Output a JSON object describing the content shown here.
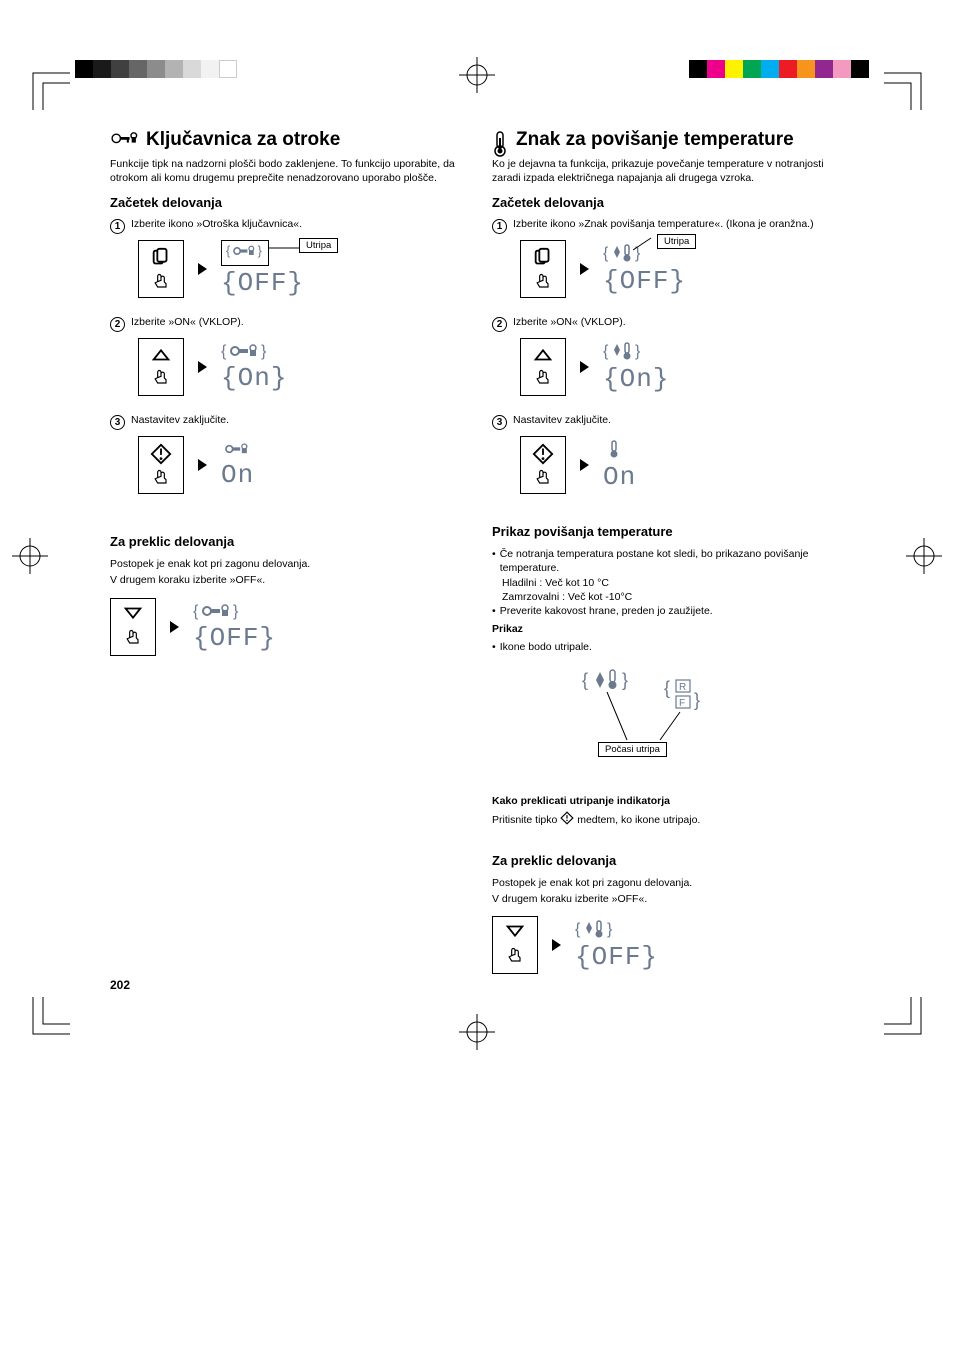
{
  "page_number": "202",
  "registration_colors_left": [
    "#000000",
    "#1a1a1a",
    "#404040",
    "#666666",
    "#8c8c8c",
    "#b3b3b3",
    "#d9d9d9",
    "#f2f2f2",
    "#ffffff"
  ],
  "registration_colors_right": [
    "#000000",
    "#ec008c",
    "#fff200",
    "#00a651",
    "#00aeef",
    "#ed1c24",
    "#f7941d",
    "#92278f",
    "#f49ac1",
    "#000000"
  ],
  "left": {
    "title": "Ključavnica za otroke",
    "intro": "Funkcije tipk na nadzorni plošči bodo zaklenjene. To funkcijo uporabite, da otrokom ali komu drugemu preprečite nenadzorovano uporabo plošče.",
    "start_heading": "Začetek delovanja",
    "steps": [
      {
        "num": "1",
        "text": "Izberite ikono »Otroška ključavnica«."
      },
      {
        "num": "2",
        "text": "Izberite »ON« (VKLOP)."
      },
      {
        "num": "3",
        "text": "Nastavitev zaključite."
      }
    ],
    "utripa": "Utripa",
    "seg_off": "OFF",
    "seg_on_blink": "On",
    "seg_on": "On",
    "cancel_heading": "Za preklic delovanja",
    "cancel_text1": "Postopek je enak kot pri zagonu delovanja.",
    "cancel_text2": "V drugem koraku izberite »OFF«."
  },
  "right": {
    "title": "Znak za povišanje temperature",
    "intro": "Ko je dejavna ta funkcija, prikazuje povečanje temperature v notranjosti zaradi izpada električnega napajanja ali drugega vzroka.",
    "start_heading": "Začetek delovanja",
    "steps": [
      {
        "num": "1",
        "text": "Izberite ikono »Znak povišanja temperature«. (Ikona je oranžna.)"
      },
      {
        "num": "2",
        "text": "Izberite »ON« (VKLOP)."
      },
      {
        "num": "3",
        "text": "Nastavitev zaključite."
      }
    ],
    "utripa": "Utripa",
    "seg_off": "OFF",
    "seg_on_blink": "On",
    "seg_on": "On",
    "display_heading": "Prikaz povišanja temperature",
    "bullets": [
      "Če notranja temperatura postane kot sledi, bo prikazano povišanje temperature.",
      "Preverite kakovost hrane, preden jo zaužijete."
    ],
    "sub_lines": [
      "Hladilni : Več kot 10 °C",
      "Zamrzovalni : Več kot -10°C"
    ],
    "prikaz_label": "Prikaz",
    "prikaz_bullet": "Ikone bodo utripale.",
    "slow_blink": "Počasi utripa",
    "rf_r": "R",
    "rf_f": "F",
    "cancel_indicator_heading": "Kako preklicati utripanje indikatorja",
    "cancel_indicator_text_pre": "Pritisnite tipko ",
    "cancel_indicator_text_post": " medtem, ko ikone utripajo.",
    "cancel_heading": "Za preklic delovanja",
    "cancel_text1": "Postopek je enak kot pri zagonu delovanja.",
    "cancel_text2": "V drugem koraku izberite »OFF«."
  }
}
